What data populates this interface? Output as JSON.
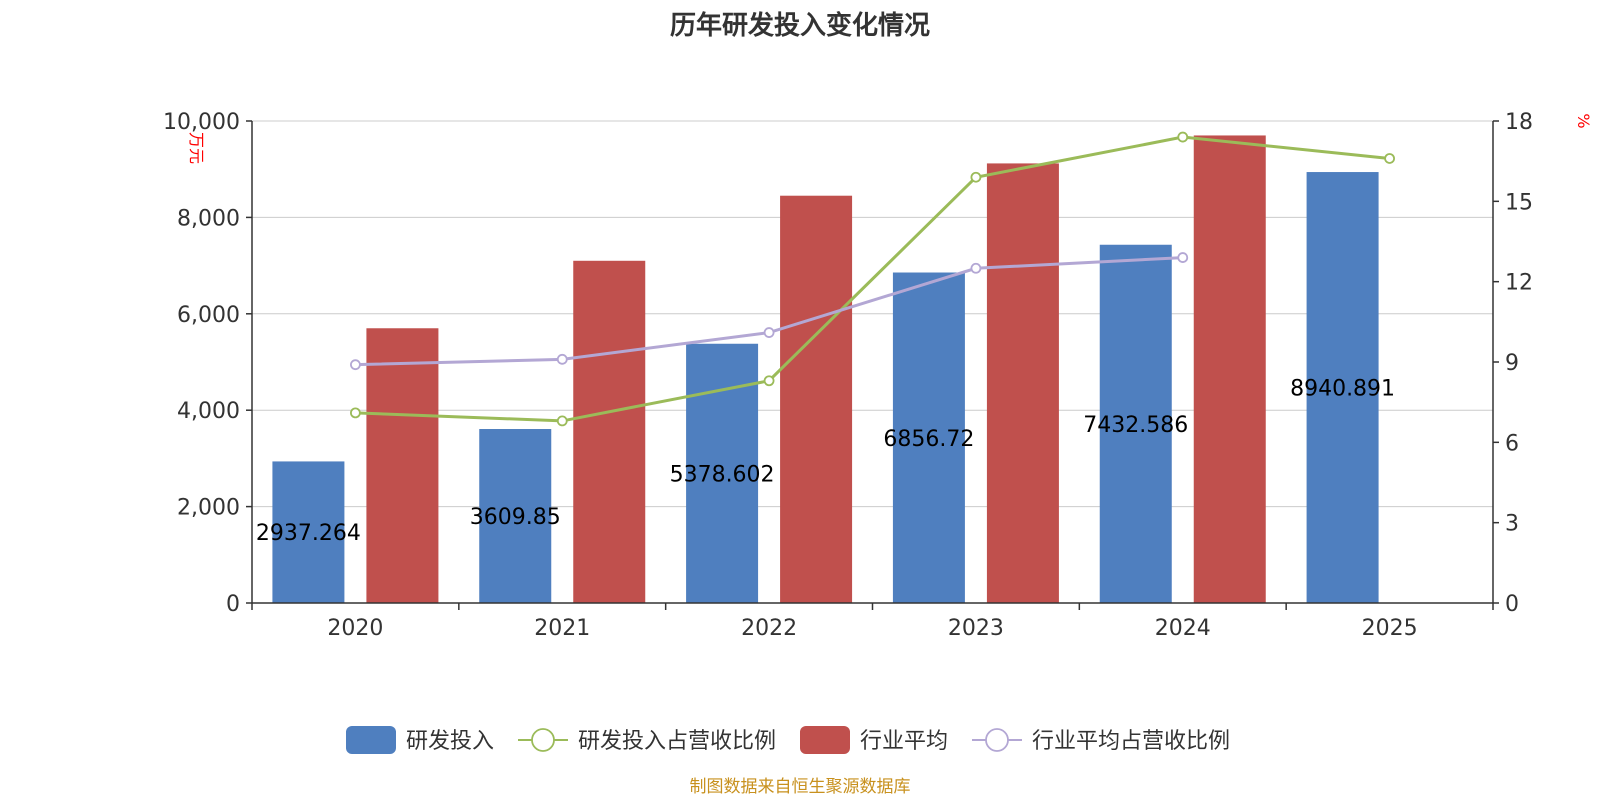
{
  "chart_data": {
    "type": "bar",
    "title": "历年研发投入变化情况",
    "categories": [
      "2020",
      "2021",
      "2022",
      "2023",
      "2024",
      "2025"
    ],
    "y_left": {
      "label": "万元",
      "ylim": [
        0,
        10000
      ],
      "ticks": [
        "0",
        "2,000",
        "4,000",
        "6,000",
        "8,000",
        "10,000"
      ]
    },
    "y_right": {
      "label": "%",
      "ylim": [
        0,
        18
      ],
      "ticks": [
        "0",
        "3",
        "6",
        "9",
        "12",
        "15",
        "18"
      ]
    },
    "series": [
      {
        "name": "研发投入",
        "kind": "bar",
        "axis": "left",
        "color": "#4f7fbf",
        "values": [
          2937.264,
          3609.85,
          5378.602,
          6856.72,
          7432.586,
          8940.891
        ],
        "labels": [
          "2937.264",
          "3609.85",
          "5378.602",
          "6856.72",
          "7432.586",
          "8940.891"
        ]
      },
      {
        "name": "研发投入占营收比例",
        "kind": "line",
        "axis": "right",
        "color": "#9bbb59",
        "values": [
          7.1,
          6.8,
          8.3,
          15.9,
          17.4,
          16.6
        ]
      },
      {
        "name": "行业平均",
        "kind": "bar",
        "axis": "left",
        "color": "#c0504d",
        "values": [
          5700,
          7100,
          8450,
          9120,
          9700,
          null
        ]
      },
      {
        "name": "行业平均占营收比例",
        "kind": "line",
        "axis": "right",
        "color": "#b3a7d4",
        "values": [
          8.9,
          9.1,
          10.1,
          12.5,
          12.9,
          null
        ]
      }
    ],
    "grid": true,
    "legend": "bottom"
  },
  "source": "制图数据来自恒生聚源数据库"
}
